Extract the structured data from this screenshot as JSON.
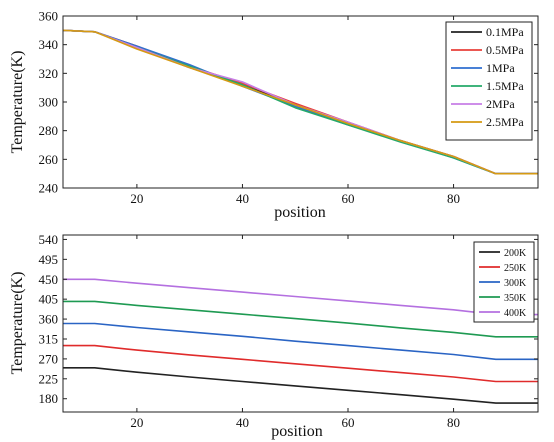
{
  "chart_data": [
    {
      "type": "line",
      "title": "",
      "xlabel": "position",
      "ylabel": "Temperature(K)",
      "xlim": [
        6,
        96
      ],
      "ylim": [
        240,
        360
      ],
      "xticks": [
        20,
        40,
        60,
        80
      ],
      "yticks": [
        240,
        260,
        280,
        300,
        320,
        340,
        360
      ],
      "legend_position": "top-right",
      "x": [
        6,
        12,
        20,
        30,
        40,
        50,
        60,
        70,
        80,
        88,
        96
      ],
      "series": [
        {
          "name": "0.1MPa",
          "color": "#222222",
          "values": [
            350,
            349,
            338,
            324,
            312,
            298,
            285,
            273,
            262,
            250,
            250
          ]
        },
        {
          "name": "0.5MPa",
          "color": "#e8413a",
          "values": [
            350,
            349,
            339,
            325,
            313,
            299,
            286,
            273,
            262,
            250,
            250
          ]
        },
        {
          "name": "1MPa",
          "color": "#2f6fd0",
          "values": [
            350,
            349,
            339,
            326,
            311,
            297,
            284,
            273,
            261,
            250,
            250
          ]
        },
        {
          "name": "1.5MPa",
          "color": "#25a96a",
          "values": [
            350,
            349,
            338,
            325,
            312,
            296,
            284,
            272,
            261,
            250,
            250
          ]
        },
        {
          "name": "2MPa",
          "color": "#c77ee6",
          "values": [
            350,
            349,
            338,
            324,
            314,
            298,
            286,
            273,
            262,
            250,
            250
          ]
        },
        {
          "name": "2.5MPa",
          "color": "#d59a13",
          "values": [
            350,
            349,
            337,
            324,
            311,
            298,
            285,
            273,
            262,
            250,
            250
          ]
        }
      ]
    },
    {
      "type": "line",
      "title": "",
      "xlabel": "position",
      "ylabel": "Temperature(K)",
      "xlim": [
        6,
        96
      ],
      "ylim": [
        150,
        550
      ],
      "xticks": [
        20,
        40,
        60,
        80
      ],
      "yticks": [
        180,
        225,
        270,
        315,
        360,
        405,
        450,
        495,
        540
      ],
      "legend_position": "top-right",
      "x": [
        6,
        12,
        20,
        30,
        40,
        50,
        60,
        70,
        80,
        88,
        96
      ],
      "series": [
        {
          "name": "200K",
          "color": "#222222",
          "values": [
            250,
            250,
            240,
            229,
            219,
            209,
            199,
            189,
            179,
            170,
            170
          ]
        },
        {
          "name": "250K",
          "color": "#e02b2b",
          "values": [
            300,
            300,
            290,
            279,
            269,
            259,
            249,
            239,
            229,
            219,
            219
          ]
        },
        {
          "name": "300K",
          "color": "#2a64c4",
          "values": [
            350,
            350,
            341,
            331,
            321,
            310,
            300,
            290,
            280,
            269,
            269
          ]
        },
        {
          "name": "350K",
          "color": "#1e9a52",
          "values": [
            400,
            400,
            391,
            381,
            371,
            361,
            351,
            340,
            330,
            320,
            320
          ]
        },
        {
          "name": "400K",
          "color": "#b470e0",
          "values": [
            450,
            450,
            441,
            431,
            421,
            411,
            401,
            391,
            381,
            370,
            370
          ]
        }
      ]
    }
  ]
}
